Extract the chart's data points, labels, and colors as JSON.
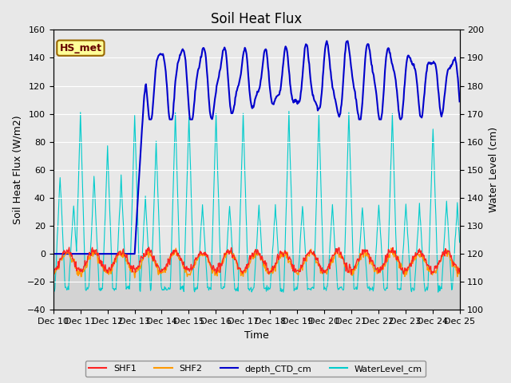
{
  "title": "Soil Heat Flux",
  "ylabel_left": "Soil Heat Flux (W/m2)",
  "ylabel_right": "Water Level (cm)",
  "xlabel": "Time",
  "ylim_left": [
    -40,
    160
  ],
  "ylim_right": [
    100,
    200
  ],
  "yticks_left": [
    -40,
    -20,
    0,
    20,
    40,
    60,
    80,
    100,
    120,
    140,
    160
  ],
  "yticks_right": [
    100,
    110,
    120,
    130,
    140,
    150,
    160,
    170,
    180,
    190,
    200
  ],
  "xtick_labels": [
    "Dec 10",
    "Dec 11",
    "Dec 12",
    "Dec 13",
    "Dec 14",
    "Dec 15",
    "Dec 16",
    "Dec 17",
    "Dec 18",
    "Dec 19",
    "Dec 20",
    "Dec 21",
    "Dec 22",
    "Dec 23",
    "Dec 24",
    "Dec 25"
  ],
  "bg_color": "#e8e8e8",
  "plot_bg_color": "#d3d3d3",
  "plot_bg_light": "#e8e8e8",
  "shf1_color": "#ff2222",
  "shf2_color": "#ff9900",
  "depth_color": "#0000cc",
  "water_color": "#00cccc",
  "annotation_text": "HS_met",
  "annotation_bg": "#ffff99",
  "annotation_border": "#996600",
  "annotation_text_color": "#660000",
  "n_days": 15,
  "n_pts": 720
}
